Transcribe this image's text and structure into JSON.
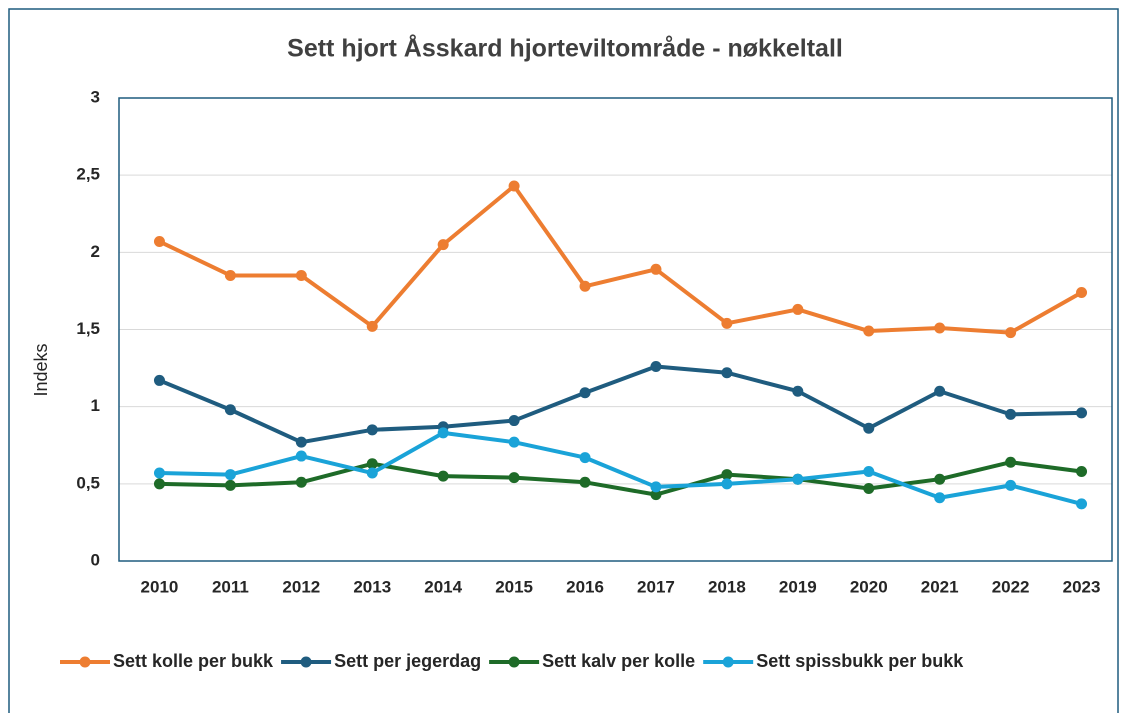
{
  "chart_data": {
    "type": "line",
    "title": "Sett hjort Åsskard hjorteviltområde - nøkkeltall",
    "y_label": "Indeks",
    "categories": [
      "2010",
      "2011",
      "2012",
      "2013",
      "2014",
      "2015",
      "2016",
      "2017",
      "2018",
      "2019",
      "2020",
      "2021",
      "2022",
      "2023"
    ],
    "series": [
      {
        "name": "Sett kolle per bukk",
        "color": "#ed7d31",
        "values": [
          2.07,
          1.85,
          1.85,
          1.52,
          2.05,
          2.43,
          1.78,
          1.89,
          1.54,
          1.63,
          1.49,
          1.51,
          1.48,
          1.74
        ]
      },
      {
        "name": "Sett per jegerdag",
        "color": "#1f5c7f",
        "values": [
          1.17,
          0.98,
          0.77,
          0.85,
          0.87,
          0.91,
          1.09,
          1.26,
          1.22,
          1.1,
          0.86,
          1.1,
          0.95,
          0.96
        ]
      },
      {
        "name": "Sett kalv per kolle",
        "color": "#1e6b28",
        "values": [
          0.5,
          0.49,
          0.51,
          0.63,
          0.55,
          0.54,
          0.51,
          0.43,
          0.56,
          0.53,
          0.47,
          0.53,
          0.64,
          0.58
        ]
      },
      {
        "name": "Sett spissbukk per bukk",
        "color": "#1aa3d8",
        "values": [
          0.57,
          0.56,
          0.68,
          0.57,
          0.83,
          0.77,
          0.67,
          0.48,
          0.5,
          0.53,
          0.58,
          0.41,
          0.49,
          0.37
        ]
      }
    ],
    "ylim": [
      0,
      3
    ],
    "yticks": [
      0,
      {
        "value": 0.5,
        "label": "0,5"
      },
      1,
      {
        "value": 1.5,
        "label": "1,5"
      },
      2,
      {
        "value": 2.5,
        "label": "2,5"
      },
      3
    ],
    "grid": true,
    "legend": "bottom"
  }
}
